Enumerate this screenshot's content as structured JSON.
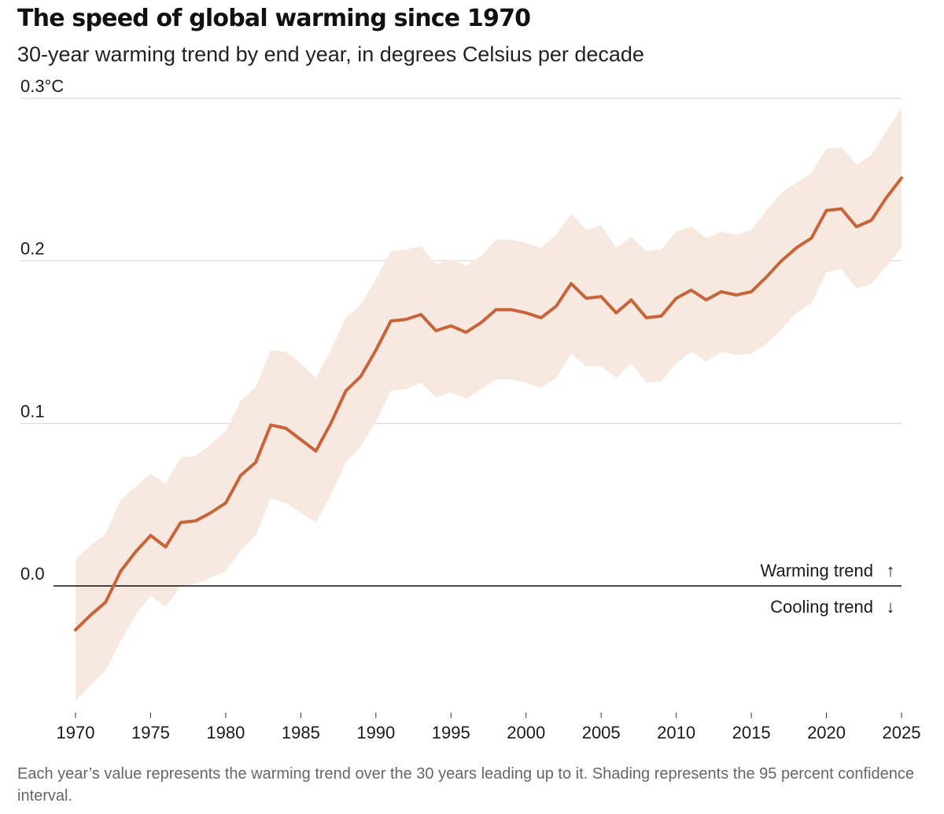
{
  "chart_data": {
    "type": "line",
    "title": "The speed of global warming since 1970",
    "subtitle": "30-year warming trend by end year, in degrees Celsius per decade",
    "xlabel": "",
    "ylabel": "",
    "xlim": [
      1970,
      2025
    ],
    "ylim": [
      -0.075,
      0.3
    ],
    "y_ticks": [
      {
        "value": 0.3,
        "label": "0.3°C"
      },
      {
        "value": 0.2,
        "label": "0.2"
      },
      {
        "value": 0.1,
        "label": "0.1"
      },
      {
        "value": 0.0,
        "label": "0.0"
      }
    ],
    "x_ticks": [
      1970,
      1975,
      1980,
      1985,
      1990,
      1995,
      2000,
      2005,
      2010,
      2015,
      2020,
      2025
    ],
    "series": [
      {
        "name": "30-year warming trend",
        "color": "#c8643a",
        "x": [
          1970,
          1971,
          1972,
          1973,
          1974,
          1975,
          1976,
          1977,
          1978,
          1979,
          1980,
          1981,
          1982,
          1983,
          1984,
          1985,
          1986,
          1987,
          1988,
          1989,
          1990,
          1991,
          1992,
          1993,
          1994,
          1995,
          1996,
          1997,
          1998,
          1999,
          2000,
          2001,
          2002,
          2003,
          2004,
          2005,
          2006,
          2007,
          2008,
          2009,
          2010,
          2011,
          2012,
          2013,
          2014,
          2015,
          2016,
          2017,
          2018,
          2019,
          2020,
          2021,
          2022,
          2023,
          2024,
          2025
        ],
        "values": [
          -0.027,
          -0.018,
          -0.01,
          0.009,
          0.021,
          0.031,
          0.024,
          0.039,
          0.04,
          0.045,
          0.051,
          0.068,
          0.076,
          0.099,
          0.097,
          0.09,
          0.083,
          0.1,
          0.12,
          0.129,
          0.145,
          0.163,
          0.164,
          0.167,
          0.157,
          0.16,
          0.156,
          0.162,
          0.17,
          0.17,
          0.168,
          0.165,
          0.172,
          0.186,
          0.177,
          0.178,
          0.168,
          0.176,
          0.165,
          0.166,
          0.177,
          0.182,
          0.176,
          0.181,
          0.179,
          0.181,
          0.19,
          0.2,
          0.208,
          0.214,
          0.231,
          0.232,
          0.221,
          0.225,
          0.239,
          0.251
        ],
        "ci_upper": [
          0.016,
          0.025,
          0.032,
          0.053,
          0.061,
          0.069,
          0.063,
          0.079,
          0.08,
          0.087,
          0.095,
          0.114,
          0.122,
          0.145,
          0.144,
          0.137,
          0.128,
          0.145,
          0.165,
          0.173,
          0.189,
          0.206,
          0.207,
          0.209,
          0.198,
          0.201,
          0.197,
          0.203,
          0.213,
          0.213,
          0.211,
          0.208,
          0.216,
          0.229,
          0.219,
          0.222,
          0.208,
          0.215,
          0.206,
          0.207,
          0.218,
          0.221,
          0.214,
          0.218,
          0.216,
          0.219,
          0.231,
          0.242,
          0.248,
          0.254,
          0.269,
          0.27,
          0.259,
          0.265,
          0.28,
          0.294
        ],
        "ci_lower": [
          -0.071,
          -0.061,
          -0.052,
          -0.034,
          -0.018,
          -0.006,
          -0.013,
          0.0,
          0.001,
          0.005,
          0.009,
          0.022,
          0.031,
          0.054,
          0.051,
          0.045,
          0.039,
          0.056,
          0.076,
          0.086,
          0.101,
          0.12,
          0.121,
          0.125,
          0.116,
          0.119,
          0.115,
          0.121,
          0.127,
          0.127,
          0.125,
          0.122,
          0.128,
          0.143,
          0.135,
          0.135,
          0.128,
          0.137,
          0.125,
          0.126,
          0.137,
          0.144,
          0.138,
          0.144,
          0.142,
          0.143,
          0.149,
          0.158,
          0.168,
          0.174,
          0.193,
          0.195,
          0.183,
          0.186,
          0.197,
          0.208
        ]
      }
    ],
    "band": {
      "name": "95 percent confidence interval",
      "color": "#f7e8e0"
    },
    "annotations": {
      "warming": "Warming trend",
      "warming_arrow": "↑",
      "cooling": "Cooling trend",
      "cooling_arrow": "↓"
    },
    "grid": true
  },
  "note": "Each year’s value represents the warming trend over the 30 years leading up to it. Shading represents the 95 percent confidence interval."
}
